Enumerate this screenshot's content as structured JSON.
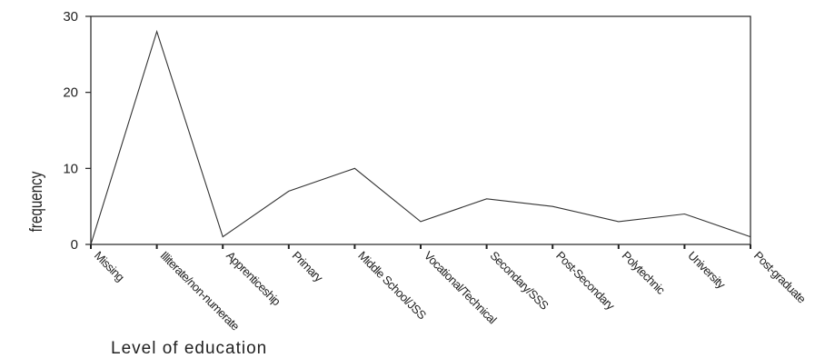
{
  "chart_data": {
    "type": "line",
    "title": "",
    "xlabel": "Level of education",
    "ylabel": "frequency",
    "categories": [
      "Missing",
      "Illiterate/non-numerate",
      "Apprenticeship",
      "Primary",
      "Middle School/JSS",
      "Vocational/Technical",
      "Secondary/SSS",
      "Post-Secondary",
      "Polytechnic",
      "University",
      "Post-graduate"
    ],
    "values": [
      0,
      28,
      1,
      7,
      10,
      3,
      6,
      5,
      3,
      4,
      1
    ],
    "yticks": [
      0,
      10,
      20,
      30
    ],
    "ylim": [
      0,
      30
    ],
    "grid": false,
    "legend": "none",
    "colors": {
      "line": "#333333",
      "axis": "#222222",
      "text": "#222222"
    }
  }
}
